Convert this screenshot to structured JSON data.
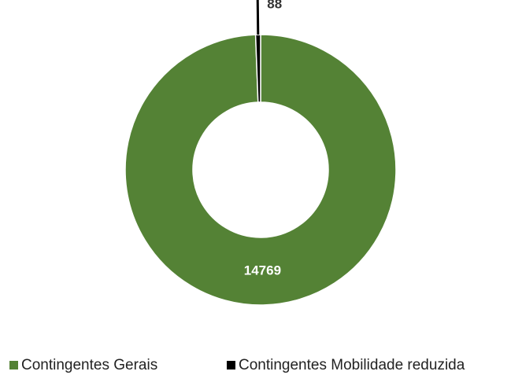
{
  "chart_data": {
    "type": "donut",
    "categories": [
      "Contingentes Gerais",
      "Contingentes Mobilidade reduzida"
    ],
    "values": [
      14769,
      88
    ],
    "colors": [
      "#548235",
      "#000000"
    ],
    "legend": "bottom"
  }
}
